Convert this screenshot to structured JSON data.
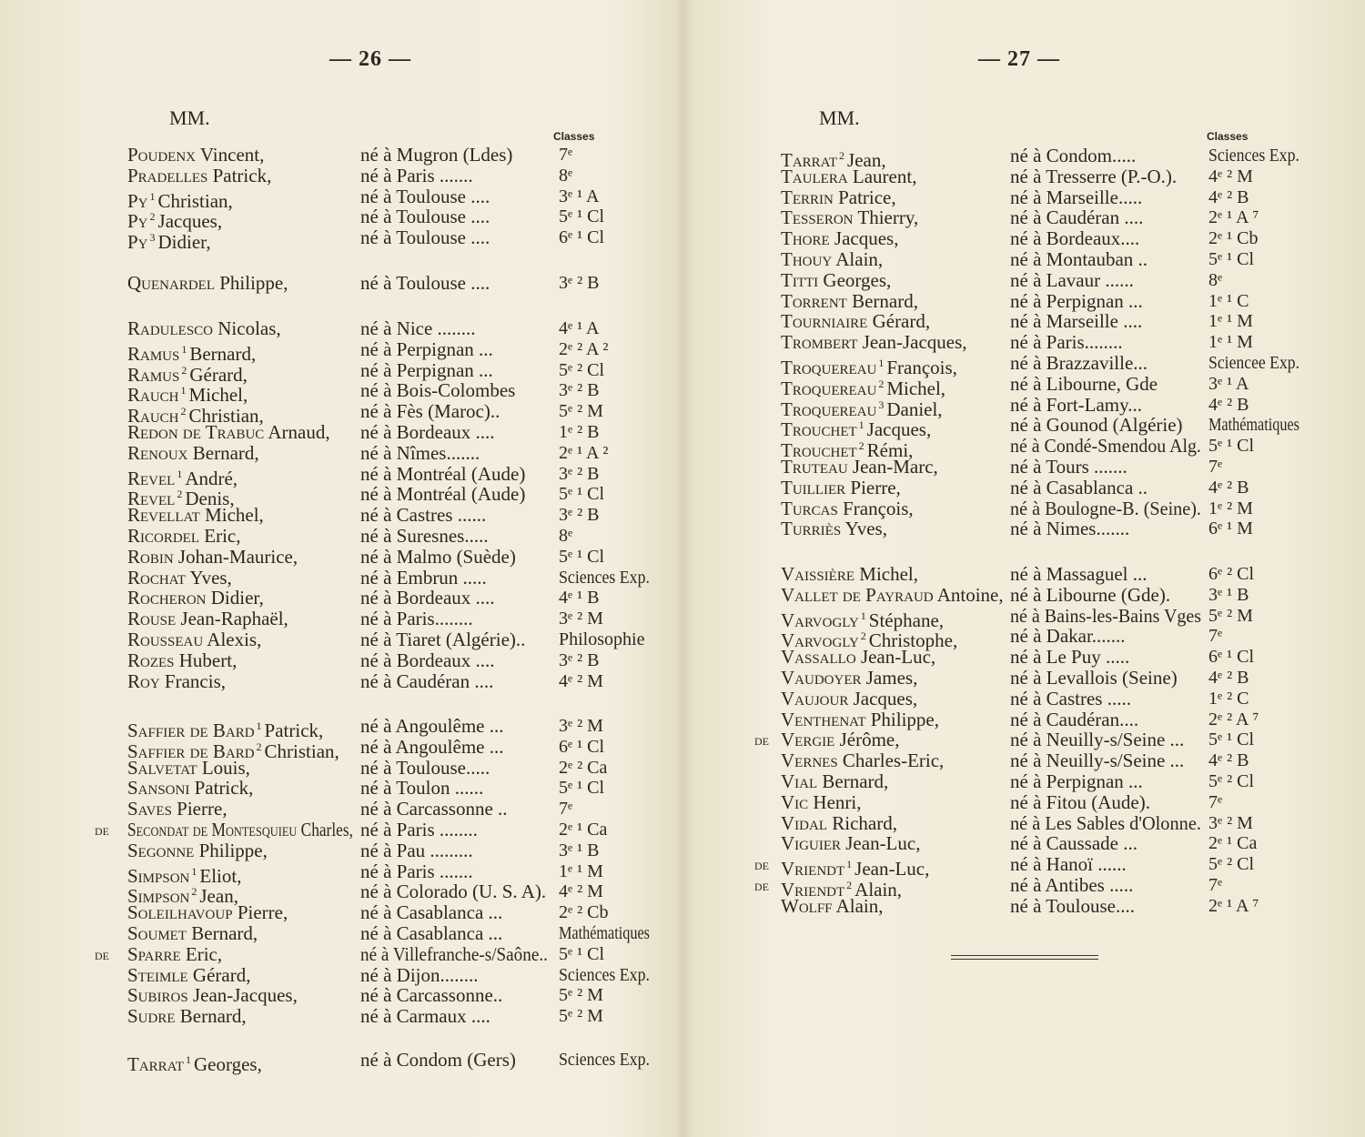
{
  "born_label": "né à",
  "left_page": {
    "page_number": "— 26 —",
    "salutation": "MM.",
    "classes_header": "Classes",
    "groups": [
      {
        "entries": [
          {
            "surname": "Poudenx",
            "given": "Vincent,",
            "place": "Mugron (Ldes)",
            "cls": "7ᵉ"
          },
          {
            "surname": "Pradelles",
            "given": "Patrick,",
            "place": "Paris .......",
            "cls": "8ᵉ"
          },
          {
            "surname": "Py",
            "sup": "1",
            "given": "Christian,",
            "place": "Toulouse ....",
            "cls": "3ᵉ ¹ A"
          },
          {
            "surname": "Py",
            "sup": "2",
            "given": "Jacques,",
            "place": "Toulouse ....",
            "cls": "5ᵉ ¹ Cl"
          },
          {
            "surname": "Py",
            "sup": "3",
            "given": "Didier,",
            "place": "Toulouse ....",
            "cls": "6ᵉ ¹ Cl"
          }
        ]
      },
      {
        "entries": [
          {
            "surname": "Quenardel",
            "given": "Philippe,",
            "place": "Toulouse ....",
            "cls": "3ᵉ ² B"
          }
        ]
      },
      {
        "entries": [
          {
            "surname": "Radulesco",
            "given": "Nicolas,",
            "place": "Nice ........",
            "cls": "4ᵉ ¹ A"
          },
          {
            "surname": "Ramus",
            "sup": "1",
            "given": "Bernard,",
            "place": "Perpignan ...",
            "cls": "2ᵉ ² A ²"
          },
          {
            "surname": "Ramus",
            "sup": "2",
            "given": "Gérard,",
            "place": "Perpignan ...",
            "cls": "5ᵉ ² Cl"
          },
          {
            "surname": "Rauch",
            "sup": "1",
            "given": "Michel,",
            "place": "Bois-Colombes",
            "cls": "3ᵉ ² B"
          },
          {
            "surname": "Rauch",
            "sup": "2",
            "given": "Christian,",
            "place": "Fès (Maroc)..",
            "cls": "5ᵉ ² M"
          },
          {
            "surname": "Redon de Trabuc",
            "given": "Arnaud,",
            "place": "Bordeaux ....",
            "cls": "1ᵉ ² B"
          },
          {
            "surname": "Renoux",
            "given": "Bernard,",
            "place": "Nîmes.......",
            "cls": "2ᵉ ¹ A ²"
          },
          {
            "surname": "Revel",
            "sup": "1",
            "given": "André,",
            "place": "Montréal (Aude)",
            "cls": "3ᵉ ² B"
          },
          {
            "surname": "Revel",
            "sup": "2",
            "given": "Denis,",
            "place": "Montréal (Aude)",
            "cls": "5ᵉ ¹ Cl"
          },
          {
            "surname": "Revellat",
            "given": "Michel,",
            "place": "Castres ......",
            "cls": "3ᵉ ² B"
          },
          {
            "surname": "Ricordel",
            "given": "Eric,",
            "place": "Suresnes.....",
            "cls": "8ᵉ"
          },
          {
            "surname": "Robin",
            "given": "Johan-Maurice,",
            "place": "Malmo (Suède)",
            "cls": "5ᵉ ¹ Cl"
          },
          {
            "surname": "Rochat",
            "given": "Yves,",
            "place": "Embrun .....",
            "cls": "Sciences Exp."
          },
          {
            "surname": "Rocheron",
            "given": "Didier,",
            "place": "Bordeaux ....",
            "cls": "4ᵉ ¹ B"
          },
          {
            "surname": "Rouse",
            "given": "Jean-Raphaël,",
            "place": "Paris........",
            "cls": "3ᵉ ² M"
          },
          {
            "surname": "Rousseau",
            "given": "Alexis,",
            "place": "Tiaret (Algérie)..",
            "cls": "Philosophie"
          },
          {
            "surname": "Rozes",
            "given": "Hubert,",
            "place": "Bordeaux ....",
            "cls": "3ᵉ ² B"
          },
          {
            "surname": "Roy",
            "given": "Francis,",
            "place": "Caudéran ....",
            "cls": "4ᵉ ² M"
          }
        ]
      },
      {
        "entries": [
          {
            "surname": "Saffier de Bard",
            "sup": "1",
            "given": "Patrick,",
            "place": "Angoulême ...",
            "cls": "3ᵉ ² M"
          },
          {
            "surname": "Saffier de Bard",
            "sup": "2",
            "given": "Christian,",
            "place": "Angoulême ...",
            "cls": "6ᵉ ¹ Cl"
          },
          {
            "surname": "Salvetat",
            "given": "Louis,",
            "place": "Toulouse.....",
            "cls": "2ᵉ ² Ca"
          },
          {
            "surname": "Sansoni",
            "given": "Patrick,",
            "place": "Toulon ......",
            "cls": "5ᵉ ¹ Cl"
          },
          {
            "surname": "Saves",
            "given": "Pierre,",
            "place": "Carcassonne ..",
            "cls": "7ᵉ"
          },
          {
            "prefix": "de",
            "surname": "Secondat de Montesquieu",
            "given": "Charles,",
            "place": "Paris ........",
            "cls": "2ᵉ ¹ Ca"
          },
          {
            "surname": "Segonne",
            "given": "Philippe,",
            "place": "Pau .........",
            "cls": "3ᵉ ¹ B"
          },
          {
            "surname": "Simpson",
            "sup": "1",
            "given": "Eliot,",
            "place": "Paris .......",
            "cls": "1ᵉ ¹ M"
          },
          {
            "surname": "Simpson",
            "sup": "2",
            "given": "Jean,",
            "place": "Colorado (U. S. A).",
            "cls": "4ᵉ ² M"
          },
          {
            "surname": "Soleilhavoup",
            "given": "Pierre,",
            "place": "Casablanca ...",
            "cls": "2ᵉ ² Cb"
          },
          {
            "surname": "Soumet",
            "given": "Bernard,",
            "place": "Casablanca ...",
            "cls": "Mathématiques"
          },
          {
            "prefix": "de",
            "surname": "Sparre",
            "given": "Eric,",
            "place": "Villefranche-s/Saône..",
            "cls": "5ᵉ ¹ Cl"
          },
          {
            "surname": "Steimle",
            "given": "Gérard,",
            "place": "Dijon........",
            "cls": "Sciences Exp."
          },
          {
            "surname": "Subiros",
            "given": "Jean-Jacques,",
            "place": "Carcassonne..",
            "cls": "5ᵉ ² M"
          },
          {
            "surname": "Sudre",
            "given": "Bernard,",
            "place": "Carmaux ....",
            "cls": "5ᵉ ² M"
          }
        ]
      },
      {
        "entries": [
          {
            "surname": "Tarrat",
            "sup": "1",
            "given": "Georges,",
            "place": "Condom (Gers)",
            "cls": "Sciences Exp."
          }
        ]
      }
    ]
  },
  "right_page": {
    "page_number": "— 27 —",
    "salutation": "MM.",
    "classes_header": "Classes",
    "groups": [
      {
        "entries": [
          {
            "surname": "Tarrat",
            "sup": "2",
            "given": "Jean,",
            "place": "Condom.....",
            "cls": "Sciences Exp."
          },
          {
            "surname": "Taulera",
            "given": "Laurent,",
            "place": "Tresserre (P.-O.).",
            "cls": "4ᵉ ² M"
          },
          {
            "surname": "Terrin",
            "given": "Patrice,",
            "place": "Marseille.....",
            "cls": "4ᵉ ² B"
          },
          {
            "surname": "Tesseron",
            "given": "Thierry,",
            "place": "Caudéran ....",
            "cls": "2ᵉ ¹ A ⁷"
          },
          {
            "surname": "Thore",
            "given": "Jacques,",
            "place": "Bordeaux....",
            "cls": "2ᵉ ¹ Cb"
          },
          {
            "surname": "Thouy",
            "given": "Alain,",
            "place": "Montauban ..",
            "cls": "5ᵉ ¹ Cl"
          },
          {
            "surname": "Titti",
            "given": "Georges,",
            "place": "Lavaur ......",
            "cls": "8ᵉ"
          },
          {
            "surname": "Torrent",
            "given": "Bernard,",
            "place": "Perpignan ...",
            "cls": "1ᵉ ¹ C"
          },
          {
            "surname": "Tourniaire",
            "given": "Gérard,",
            "place": "Marseille ....",
            "cls": "1ᵉ ¹ M"
          },
          {
            "surname": "Trombert",
            "given": "Jean-Jacques,",
            "place": "Paris........",
            "cls": "1ᵉ ¹ M"
          },
          {
            "surname": "Troquereau",
            "sup": "1",
            "given": "François,",
            "place": "Brazzaville...",
            "cls": "Sciencee Exp."
          },
          {
            "surname": "Troquereau",
            "sup": "2",
            "given": "Michel,",
            "place": "Libourne, Gde",
            "cls": "3ᵉ ¹ A"
          },
          {
            "surname": "Troquereau",
            "sup": "3",
            "given": "Daniel,",
            "place": "Fort-Lamy...",
            "cls": "4ᵉ ² B"
          },
          {
            "surname": "Trouchet",
            "sup": "1",
            "given": "Jacques,",
            "place": "Gounod (Algérie)",
            "cls": "Mathématiques"
          },
          {
            "surname": "Trouchet",
            "sup": "2",
            "given": "Rémi,",
            "place": "Condé-Smendou Alg.",
            "cls": "5ᵉ ¹ Cl"
          },
          {
            "surname": "Truteau",
            "given": "Jean-Marc,",
            "place": "Tours .......",
            "cls": "7ᵉ"
          },
          {
            "surname": "Tuillier",
            "given": "Pierre,",
            "place": "Casablanca ..",
            "cls": "4ᵉ ² B"
          },
          {
            "surname": "Turcas",
            "given": "François,",
            "place": "Boulogne-B. (Seine).",
            "cls": "1ᵉ ² M"
          },
          {
            "surname": "Turriès",
            "given": "Yves,",
            "place": "Nimes.......",
            "cls": "6ᵉ ¹ M"
          }
        ]
      },
      {
        "entries": [
          {
            "surname": "Vaissière",
            "given": "Michel,",
            "place": "Massaguel ...",
            "cls": "6ᵉ ² Cl"
          },
          {
            "surname": "Vallet de Payraud",
            "given": "Antoine,",
            "place": "Libourne (Gde).",
            "cls": "3ᵉ ¹ B"
          },
          {
            "surname": "Varvogly",
            "sup": "1",
            "given": "Stéphane,",
            "place": "Bains-les-Bains Vges",
            "cls": "5ᵉ ² M"
          },
          {
            "surname": "Varvogly",
            "sup": "2",
            "given": "Christophe,",
            "place": "Dakar.......",
            "cls": "7ᵉ"
          },
          {
            "surname": "Vassallo",
            "given": "Jean-Luc,",
            "place": "Le Puy .....",
            "cls": "6ᵉ ¹ Cl"
          },
          {
            "surname": "Vaudoyer",
            "given": "James,",
            "place": "Levallois (Seine)",
            "cls": "4ᵉ ² B"
          },
          {
            "surname": "Vaujour",
            "given": "Jacques,",
            "place": "Castres .....",
            "cls": "1ᵉ ² C"
          },
          {
            "surname": "Venthenat",
            "given": "Philippe,",
            "place": "Caudéran....",
            "cls": "2ᵉ ² A ⁷"
          },
          {
            "prefix": "de",
            "surname": "Vergie",
            "given": "Jérôme,",
            "place": "Neuilly-s/Seine ...",
            "cls": "5ᵉ ¹ Cl"
          },
          {
            "surname": "Vernes",
            "given": "Charles-Eric,",
            "place": "Neuilly-s/Seine ...",
            "cls": "4ᵉ ² B"
          },
          {
            "surname": "Vial",
            "given": "Bernard,",
            "place": "Perpignan ...",
            "cls": "5ᵉ ² Cl"
          },
          {
            "surname": "Vic",
            "given": "Henri,",
            "place": "Fitou (Aude).",
            "cls": "7ᵉ"
          },
          {
            "surname": "Vidal",
            "given": "Richard,",
            "place": "Les Sables d'Olonne.",
            "cls": "3ᵉ ² M"
          },
          {
            "surname": "Viguier",
            "given": "Jean-Luc,",
            "place": "Caussade ...",
            "cls": "2ᵉ ¹ Ca"
          },
          {
            "prefix": "de",
            "surname": "Vriendt",
            "sup": "1",
            "given": "Jean-Luc,",
            "place": "Hanoï ......",
            "cls": "5ᵉ ² Cl"
          },
          {
            "prefix": "de",
            "surname": "Vriendt",
            "sup": "2",
            "given": "Alain,",
            "place": "Antibes .....",
            "cls": "7ᵉ"
          },
          {
            "surname": "Wolff",
            "given": "Alain,",
            "place": "Toulouse....",
            "cls": "2ᵉ ¹ A ⁷"
          }
        ]
      }
    ]
  }
}
